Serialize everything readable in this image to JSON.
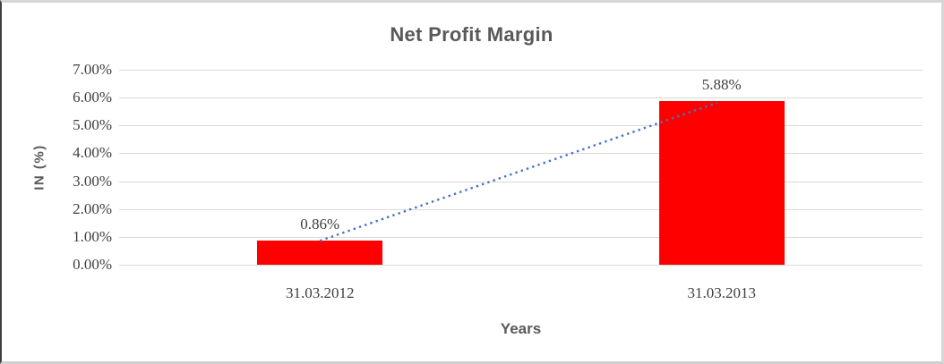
{
  "chart_data": {
    "type": "bar",
    "title": "Net Profit Margin",
    "categories": [
      "31.03.2012",
      "31.03.2013"
    ],
    "values": [
      0.86,
      5.88
    ],
    "data_labels": [
      "0.86%",
      "5.88%"
    ],
    "xlabel": "Years",
    "ylabel": "IN (%)",
    "ylim": [
      0,
      7
    ],
    "yticks": [
      0,
      1,
      2,
      3,
      4,
      5,
      6,
      7
    ],
    "ytick_labels": [
      "0.00%",
      "1.00%",
      "2.00%",
      "3.00%",
      "4.00%",
      "5.00%",
      "6.00%",
      "7.00%"
    ],
    "grid": true,
    "legend": "none",
    "bar_color": "#FF0000",
    "trendline": {
      "type": "linear",
      "style": "dotted",
      "color": "#4472C4"
    },
    "colors": {
      "title": "#595959",
      "axis_title": "#595959",
      "tick_label": "#3F3F3F",
      "data_label": "#3F3F3F",
      "gridline": "#D9D9D9",
      "background": "#FFFFFF"
    }
  }
}
